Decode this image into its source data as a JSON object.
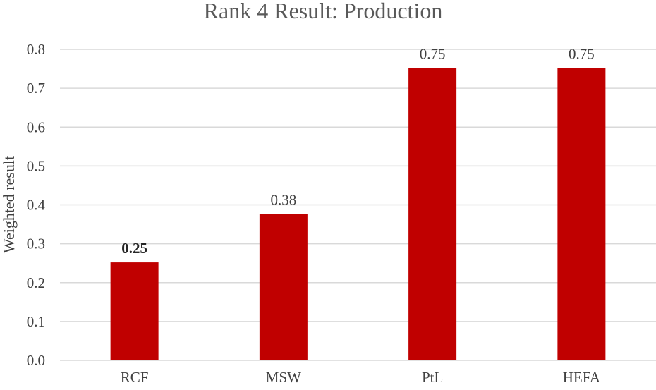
{
  "chart_data": {
    "type": "bar",
    "title": "Rank 4 Result: Production",
    "xlabel": "",
    "ylabel": "Weighted result",
    "categories": [
      "RCF",
      "MSW",
      "PtL",
      "HEFA"
    ],
    "values": [
      0.252,
      0.376,
      0.752,
      0.752
    ],
    "data_labels": [
      "0.25",
      "0.38",
      "0.75",
      "0.75"
    ],
    "bold_labels": [
      true,
      false,
      false,
      false
    ],
    "ylim": [
      0,
      0.8
    ],
    "yticks": [
      "0.0",
      "0.1",
      "0.2",
      "0.3",
      "0.4",
      "0.5",
      "0.6",
      "0.7",
      "0.8"
    ],
    "grid": true,
    "legend": "none",
    "bar_color": "#c00000"
  }
}
